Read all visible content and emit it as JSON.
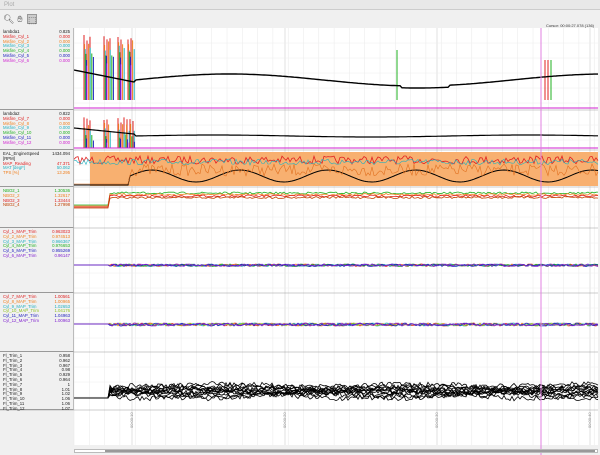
{
  "window": {
    "title": "Plot"
  },
  "toolbar": {
    "icons": [
      "zoom-icon",
      "pan-hand-icon",
      "select-icon"
    ]
  },
  "cursor_label": "Cursor: 00:00:27.078 (136)",
  "panels": [
    {
      "rows": [
        {
          "name": "lambda1",
          "value": "0.825",
          "color": "#000000"
        },
        {
          "name": "Misfire_Cyl_1",
          "value": "0.000",
          "color": "#e02020"
        },
        {
          "name": "Misfire_Cyl_2",
          "value": "0.000",
          "color": "#f08020"
        },
        {
          "name": "Misfire_Cyl_3",
          "value": "0.000",
          "color": "#20b0c0"
        },
        {
          "name": "Misfire_Cyl_4",
          "value": "0.000",
          "color": "#20b020"
        },
        {
          "name": "Misfire_Cyl_5",
          "value": "0.000",
          "color": "#2020c0"
        },
        {
          "name": "Misfire_Cyl_6",
          "value": "0.000",
          "color": "#d020d0"
        }
      ]
    },
    {
      "rows": [
        {
          "name": "lambda2",
          "value": "0.822",
          "color": "#000000"
        },
        {
          "name": "Misfire_Cyl_7",
          "value": "0.000",
          "color": "#e02020"
        },
        {
          "name": "Misfire_Cyl_8",
          "value": "0.000",
          "color": "#f08020"
        },
        {
          "name": "Misfire_Cyl_9",
          "value": "0.000",
          "color": "#20b0c0"
        },
        {
          "name": "Misfire_Cyl_10",
          "value": "0.000",
          "color": "#20b020"
        },
        {
          "name": "Misfire_Cyl_11",
          "value": "0.000",
          "color": "#2020c0"
        },
        {
          "name": "Misfire_Cyl_12",
          "value": "0.000",
          "color": "#d020d0"
        }
      ]
    },
    {
      "rows": [
        {
          "name": "EAL_EngineSpeed [RPM]",
          "value": "1434.094",
          "color": "#000000"
        },
        {
          "name": "MAP_Reading",
          "value": "47.371",
          "color": "#e02020"
        },
        {
          "name": "MAT [degF]",
          "value": "50.062",
          "color": "#20b0c0"
        },
        {
          "name": "TPS [%]",
          "value": "13.295",
          "color": "#f08020"
        }
      ]
    },
    {
      "rows": [
        {
          "name": "NBO2_1",
          "value": "1.30536",
          "color": "#20b020"
        },
        {
          "name": "NBO2_2",
          "value": "1.32617",
          "color": "#f08020"
        },
        {
          "name": "NBO2_3",
          "value": "1.33444",
          "color": "#e02020"
        },
        {
          "name": "NBO2_4",
          "value": "1.27998",
          "color": "#c04000"
        }
      ]
    },
    {
      "rows": [
        {
          "name": "Cyl_1_MAP_Trim",
          "value": "0.963023",
          "color": "#e02020"
        },
        {
          "name": "Cyl_2_MAP_Trim",
          "value": "0.974513",
          "color": "#f08020"
        },
        {
          "name": "Cyl_3_MAP_Trim",
          "value": "0.966367",
          "color": "#20b0c0"
        },
        {
          "name": "Cyl_4_MAP_Trim",
          "value": "0.976653",
          "color": "#20b020"
        },
        {
          "name": "Cyl_5_MAP_Trim",
          "value": "0.955269",
          "color": "#2020c0"
        },
        {
          "name": "Cyl_6_MAP_Trim",
          "value": "0.96147",
          "color": "#8020d0"
        }
      ]
    },
    {
      "rows": [
        {
          "name": "Cyl_7_MAP_Trim",
          "value": "1.00561",
          "color": "#e02020"
        },
        {
          "name": "Cyl_8_MAP_Trim",
          "value": "1.00965",
          "color": "#f08020"
        },
        {
          "name": "Cyl_9_MAP_Trim",
          "value": "1.02653",
          "color": "#20b0c0"
        },
        {
          "name": "Cyl_10_MAP_Trim",
          "value": "1.04176",
          "color": "#90c020"
        },
        {
          "name": "Cyl_11_MAP_Trim",
          "value": "1.04963",
          "color": "#2020c0"
        },
        {
          "name": "Cyl_12_MAP_Trim",
          "value": "1.00963",
          "color": "#8020d0"
        }
      ]
    },
    {
      "rows": [
        {
          "name": "Fl_Trim_1",
          "value": "0.958",
          "color": "#000000"
        },
        {
          "name": "Fl_Trim_2",
          "value": "0.962",
          "color": "#000000"
        },
        {
          "name": "Fl_Trim_3",
          "value": "0.967",
          "color": "#000000"
        },
        {
          "name": "Fl_Trim_4",
          "value": "0.98",
          "color": "#000000"
        },
        {
          "name": "Fl_Trim_5",
          "value": "0.929",
          "color": "#000000"
        },
        {
          "name": "Fl_Trim_6",
          "value": "0.964",
          "color": "#000000"
        },
        {
          "name": "Fl_Trim_7",
          "value": "1",
          "color": "#000000"
        },
        {
          "name": "Fl_Trim_8",
          "value": "1.01",
          "color": "#000000"
        },
        {
          "name": "Fl_Trim_9",
          "value": "1.02",
          "color": "#000000"
        },
        {
          "name": "Fl_Trim_10",
          "value": "1.06",
          "color": "#000000"
        },
        {
          "name": "Fl_Trim_11",
          "value": "1.06",
          "color": "#000000"
        },
        {
          "name": "Fl_Trim_12",
          "value": "1.07",
          "color": "#000000"
        }
      ]
    }
  ],
  "time_axis": {
    "ticks": [
      "00:00:10",
      "00:00:20",
      "00:00:30",
      "00:00:40"
    ]
  },
  "cursor_color": "#e080e0"
}
